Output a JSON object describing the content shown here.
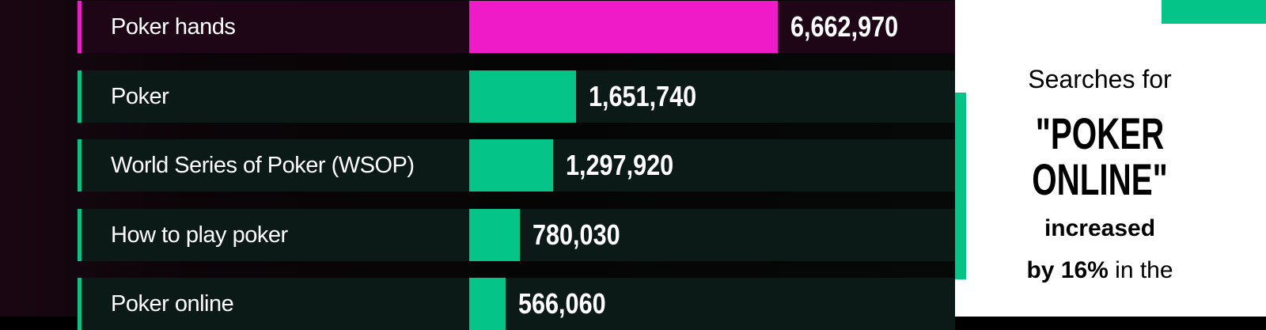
{
  "chart_data": {
    "type": "bar",
    "orientation": "horizontal",
    "categories": [
      "Poker hands",
      "Poker",
      "World Series of Poker (WSOP)",
      "How to play poker",
      "Poker online"
    ],
    "values": [
      6662970,
      1651740,
      1297920,
      780030,
      566060
    ],
    "labels": [
      "6,662,970",
      "1,651,740",
      "1,297,920",
      "780,030",
      "566,060"
    ],
    "highlight_index": 0,
    "colors": {
      "highlight": "#f01bc8",
      "default": "#04c487"
    }
  },
  "panel": {
    "line1": "Searches for",
    "headline": "\"POKER ONLINE\"",
    "line3": "increased",
    "line4_bold": "by 16%",
    "line4_rest": " in the"
  }
}
